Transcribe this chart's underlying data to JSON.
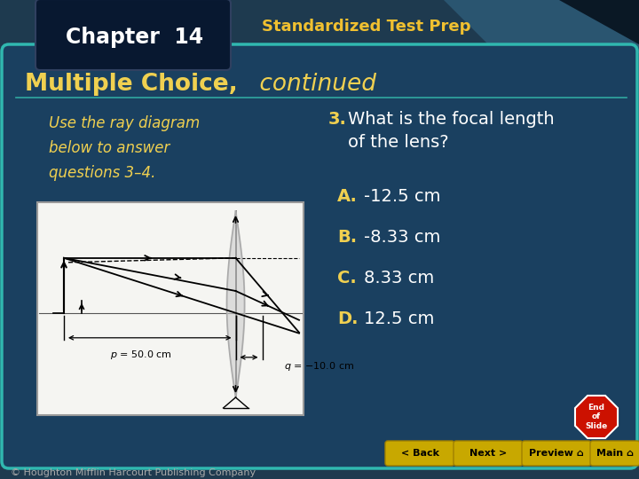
{
  "bg_outer": "#1e3a4f",
  "bg_main": "#1a4060",
  "bg_main_border": "#30b8b0",
  "header_box_top": "#000510",
  "header_box_bottom": "#0a2545",
  "header_text_chapter": "Chapter  14",
  "header_text_prep": "Standardized Test Prep",
  "header_prep_color": "#f0c030",
  "title_text_bold": "Multiple Choice,",
  "title_text_italic": " continued",
  "title_color": "#f0d050",
  "question_prompt_color": "#f0d050",
  "question_number": "3.",
  "question_color": "#ffffff",
  "answers": [
    {
      "letter": "A.",
      "text": "-12.5 cm"
    },
    {
      "letter": "B.",
      "text": "-8.33 cm"
    },
    {
      "letter": "C.",
      "text": "8.33 cm"
    },
    {
      "letter": "D.",
      "text": "12.5 cm"
    }
  ],
  "answer_letter_color": "#f0d050",
  "answer_text_color": "#ffffff",
  "footer_text": "© Houghton Mifflin Harcourt Publishing Company",
  "footer_color": "#aaaaaa",
  "end_of_slide_color": "#cc1100",
  "end_of_slide_text": "End\nof\nSlide",
  "nav_btn_color": "#c8a800",
  "nav_btn_text": "#000000",
  "nav_buttons": [
    "< Back",
    "Next >",
    "Preview ⌂",
    "Main ⌂"
  ]
}
